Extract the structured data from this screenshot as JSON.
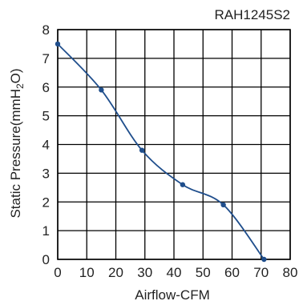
{
  "chart_data": {
    "type": "line",
    "title": "RAH1245S2",
    "xlabel": "Airflow-CFM",
    "ylabel_main": "Static Pressure(mmH",
    "ylabel_sub": "2",
    "ylabel_tail": "O)",
    "xlim": [
      0,
      80
    ],
    "ylim": [
      0,
      8
    ],
    "x_ticks": [
      0,
      10,
      20,
      30,
      40,
      50,
      60,
      70,
      80
    ],
    "y_ticks": [
      0,
      1,
      2,
      3,
      4,
      5,
      6,
      7,
      8
    ],
    "grid": true,
    "series": [
      {
        "color": "#1f4e8c",
        "points": [
          {
            "x": 0,
            "y": 7.5
          },
          {
            "x": 15,
            "y": 5.9
          },
          {
            "x": 29,
            "y": 3.8
          },
          {
            "x": 43,
            "y": 2.6
          },
          {
            "x": 57,
            "y": 1.9
          },
          {
            "x": 71,
            "y": 0.0
          }
        ]
      }
    ]
  }
}
